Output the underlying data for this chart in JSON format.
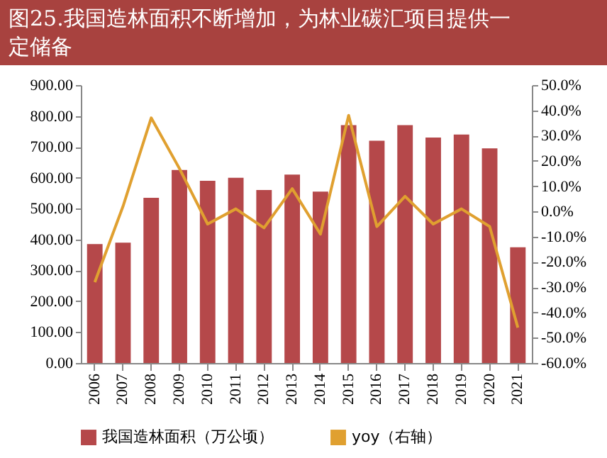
{
  "chart_data": {
    "type": "bar",
    "title": "图25.我国造林面积不断增加，为林业碳汇项目提供一定储备",
    "categories": [
      "2006",
      "2007",
      "2008",
      "2009",
      "2010",
      "2011",
      "2012",
      "2013",
      "2014",
      "2015",
      "2016",
      "2017",
      "2018",
      "2019",
      "2020",
      "2021"
    ],
    "series": [
      {
        "name": "我国造林面积（万公顷）",
        "color": "#b5484a",
        "values": [
          385,
          390,
          535,
          625,
          590,
          600,
          560,
          610,
          555,
          770,
          720,
          770,
          730,
          740,
          695,
          375
        ]
      },
      {
        "name": "yoy（右轴）",
        "type": "line",
        "axis": "y2",
        "color": "#e0a030",
        "values": [
          -28,
          2,
          37,
          17,
          -5,
          1,
          -6.5,
          9,
          -9,
          38,
          -6,
          6,
          -5,
          1,
          -6,
          -46
        ]
      }
    ],
    "ylim": [
      0,
      900
    ],
    "yticks": [
      {
        "value": 0,
        "label": "0.00"
      },
      {
        "value": 100,
        "label": "100.00"
      },
      {
        "value": 200,
        "label": "200.00"
      },
      {
        "value": 300,
        "label": "300.00"
      },
      {
        "value": 400,
        "label": "400.00"
      },
      {
        "value": 500,
        "label": "500.00"
      },
      {
        "value": 600,
        "label": "600.00"
      },
      {
        "value": 700,
        "label": "700.00"
      },
      {
        "value": 800,
        "label": "800.00"
      },
      {
        "value": 900,
        "label": "900.00"
      }
    ],
    "y2lim": [
      -60,
      50
    ],
    "y2ticks": [
      {
        "value": -60,
        "label": "-60.0%"
      },
      {
        "value": -50,
        "label": "-50.0%"
      },
      {
        "value": -40,
        "label": "-40.0%"
      },
      {
        "value": -30,
        "label": "-30.0%"
      },
      {
        "value": -20,
        "label": "-20.0%"
      },
      {
        "value": -10,
        "label": "-10.0%"
      },
      {
        "value": 0,
        "label": "0.0%"
      },
      {
        "value": 10,
        "label": "10.0%"
      },
      {
        "value": 20,
        "label": "20.0%"
      },
      {
        "value": 30,
        "label": "30.0%"
      },
      {
        "value": 40,
        "label": "40.0%"
      },
      {
        "value": 50,
        "label": "50.0%"
      }
    ],
    "grid": false,
    "legend": "bottom"
  }
}
